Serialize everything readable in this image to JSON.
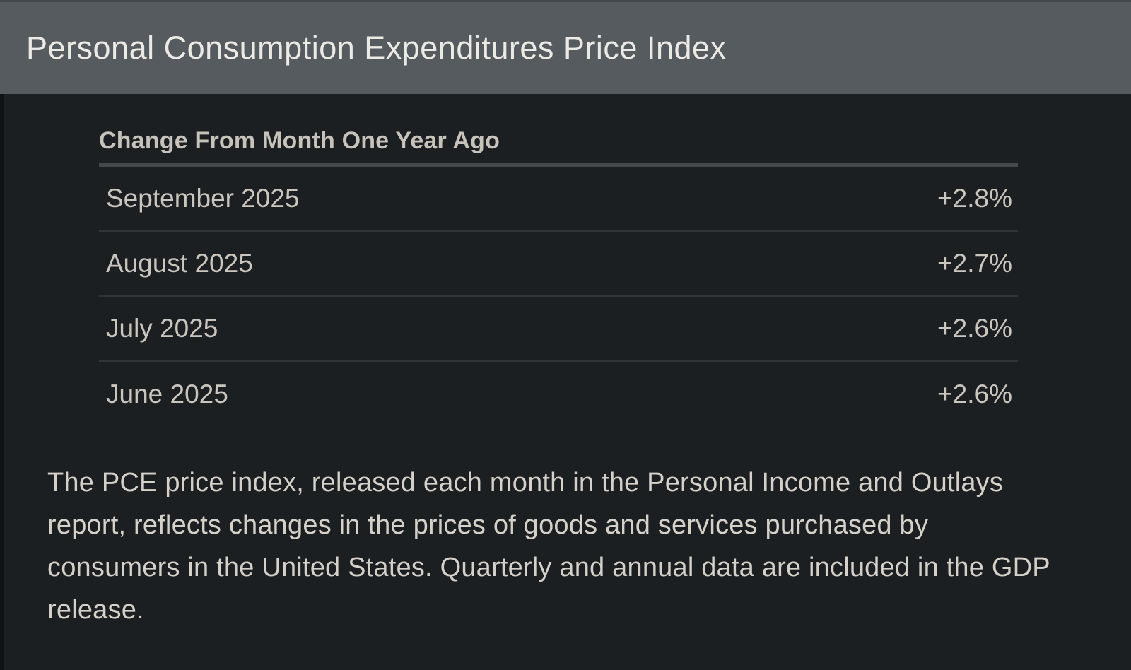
{
  "header": {
    "title": "Personal Consumption Expenditures Price Index"
  },
  "section": {
    "heading": "Change From Month One Year Ago",
    "rows": [
      {
        "label": "September 2025",
        "value": "+2.8%"
      },
      {
        "label": "August 2025",
        "value": "+2.7%"
      },
      {
        "label": "July 2025",
        "value": "+2.6%"
      },
      {
        "label": "June 2025",
        "value": "+2.6%"
      }
    ]
  },
  "description": "The PCE price index, released each month in the Personal Income and Outlays report, reflects changes in the prices of goods and services purchased by consumers in the United States. Quarterly and annual data are included in the GDP release.",
  "colors": {
    "header_bg": "#565b60",
    "content_bg": "#1c1f22",
    "title_text": "#eceae5",
    "heading_text": "#c7c3ba",
    "row_text": "#cac6be",
    "paragraph_text": "#d5d1c8",
    "heading_rule": "#46494c",
    "row_rule": "#303437"
  }
}
